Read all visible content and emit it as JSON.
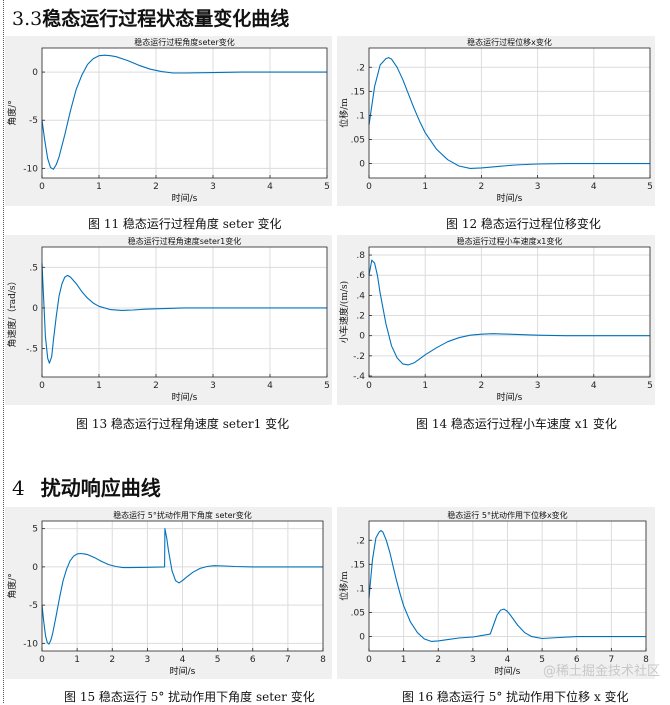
{
  "headings": {
    "section_3_3": {
      "num": "3.3",
      "text": "稳态运行过程状态量变化曲线"
    },
    "section_4": {
      "num": "4",
      "text": "扰动响应曲线"
    }
  },
  "captions": [
    "图 11 稳态运行过程角度 seter 变化",
    "图 12 稳态运行过程位移变化",
    "图 13 稳态运行过程角速度 seter1 变化",
    "图 14 稳态运行过程小车速度 x1 变化",
    "图 15 稳态运行 5° 扰动作用下角度 seter 变化",
    "图 16 稳态运行 5° 扰动作用下位移 x 变化"
  ],
  "watermark": "@稀土掘金技术社区",
  "chart_data": [
    {
      "type": "line",
      "title": "稳态运行过程角度seter变化",
      "xlabel": "时间/s",
      "ylabel": "角度/°",
      "xlim": [
        0,
        5
      ],
      "ylim": [
        -11,
        2.5
      ],
      "xticks": [
        0,
        1,
        2,
        3,
        4,
        5
      ],
      "yticks": [
        -10,
        -5,
        0
      ],
      "grid": true,
      "series": [
        {
          "x": [
            0,
            0.05,
            0.1,
            0.15,
            0.2,
            0.25,
            0.3,
            0.4,
            0.5,
            0.6,
            0.7,
            0.8,
            0.9,
            1.0,
            1.1,
            1.2,
            1.3,
            1.5,
            1.7,
            1.9,
            2.1,
            2.3,
            2.5,
            3.0,
            3.5,
            4.0,
            5.0
          ],
          "y": [
            -5,
            -7.2,
            -9.0,
            -9.9,
            -10.1,
            -9.6,
            -8.8,
            -6.5,
            -4.0,
            -1.8,
            -0.3,
            0.8,
            1.4,
            1.7,
            1.75,
            1.7,
            1.6,
            1.2,
            0.7,
            0.3,
            0.05,
            -0.1,
            -0.1,
            -0.05,
            0,
            0,
            0
          ]
        }
      ]
    },
    {
      "type": "line",
      "title": "稳态运行过程位移x变化",
      "xlabel": "时间/s",
      "ylabel": "位移/m",
      "xlim": [
        0,
        5
      ],
      "ylim": [
        -0.03,
        0.24
      ],
      "xticks": [
        0,
        1,
        2,
        3,
        4,
        5
      ],
      "yticks": [
        0,
        0.05,
        0.1,
        0.15,
        0.2
      ],
      "grid": true,
      "series": [
        {
          "x": [
            0,
            0.1,
            0.2,
            0.3,
            0.35,
            0.4,
            0.5,
            0.6,
            0.7,
            0.8,
            0.9,
            1.0,
            1.2,
            1.4,
            1.6,
            1.8,
            2.0,
            2.3,
            2.6,
            3.0,
            3.5,
            4.0,
            5.0
          ],
          "y": [
            0.08,
            0.16,
            0.205,
            0.218,
            0.22,
            0.217,
            0.2,
            0.175,
            0.145,
            0.115,
            0.088,
            0.064,
            0.03,
            0.008,
            -0.005,
            -0.01,
            -0.009,
            -0.006,
            -0.003,
            -0.001,
            0,
            0,
            0
          ]
        }
      ]
    },
    {
      "type": "line",
      "title": "稳态运行过程角速度seter1变化",
      "xlabel": "时间/s",
      "ylabel": "角速度/（rad/s）",
      "xlim": [
        0,
        5
      ],
      "ylim": [
        -0.85,
        0.75
      ],
      "xticks": [
        0,
        1,
        2,
        3,
        4,
        5
      ],
      "yticks": [
        -0.5,
        0,
        0.5
      ],
      "grid": true,
      "series": [
        {
          "x": [
            0,
            0.03,
            0.06,
            0.1,
            0.13,
            0.17,
            0.2,
            0.25,
            0.3,
            0.35,
            0.4,
            0.45,
            0.5,
            0.6,
            0.7,
            0.8,
            0.9,
            1.0,
            1.2,
            1.4,
            1.6,
            1.8,
            2.0,
            2.5,
            3.0,
            5.0
          ],
          "y": [
            0.55,
            0.1,
            -0.35,
            -0.62,
            -0.68,
            -0.6,
            -0.4,
            -0.1,
            0.15,
            0.3,
            0.38,
            0.4,
            0.38,
            0.3,
            0.2,
            0.12,
            0.06,
            0.02,
            -0.02,
            -0.03,
            -0.025,
            -0.015,
            -0.01,
            0,
            0,
            0
          ]
        }
      ]
    },
    {
      "type": "line",
      "title": "稳态运行过程小车速度x1变化",
      "xlabel": "时间/s",
      "ylabel": "小车速度/(m/s)",
      "xlim": [
        0,
        5
      ],
      "ylim": [
        -0.41,
        0.88
      ],
      "xticks": [
        0,
        1,
        2,
        3,
        4,
        5
      ],
      "yticks": [
        -0.4,
        -0.2,
        0,
        0.2,
        0.4,
        0.6,
        0.8
      ],
      "grid": true,
      "series": [
        {
          "x": [
            0,
            0.05,
            0.1,
            0.15,
            0.2,
            0.3,
            0.4,
            0.5,
            0.6,
            0.7,
            0.8,
            0.9,
            1.0,
            1.2,
            1.4,
            1.6,
            1.8,
            2.0,
            2.2,
            2.5,
            3.0,
            3.5,
            4.0,
            5.0
          ],
          "y": [
            0.6,
            0.75,
            0.72,
            0.6,
            0.42,
            0.12,
            -0.1,
            -0.22,
            -0.28,
            -0.29,
            -0.27,
            -0.23,
            -0.19,
            -0.12,
            -0.06,
            -0.02,
            0.005,
            0.015,
            0.02,
            0.015,
            0.005,
            0,
            0,
            0
          ]
        }
      ]
    },
    {
      "type": "line",
      "title": "稳态运行 5°扰动作用下角度 seter变化",
      "xlabel": "时间/s",
      "ylabel": "角度/°",
      "xlim": [
        0,
        8
      ],
      "ylim": [
        -11,
        6
      ],
      "xticks": [
        0,
        1,
        2,
        3,
        4,
        5,
        6,
        7,
        8
      ],
      "yticks": [
        -10,
        -5,
        0,
        5
      ],
      "grid": true,
      "series": [
        {
          "x": [
            0,
            0.05,
            0.1,
            0.15,
            0.2,
            0.25,
            0.3,
            0.4,
            0.5,
            0.6,
            0.7,
            0.8,
            0.9,
            1.0,
            1.1,
            1.2,
            1.3,
            1.5,
            1.7,
            1.9,
            2.1,
            2.3,
            2.5,
            3.0,
            3.49,
            3.5,
            3.55,
            3.6,
            3.7,
            3.8,
            3.9,
            4.0,
            4.1,
            4.3,
            4.5,
            4.7,
            4.9,
            5.2,
            5.5,
            6.0,
            6.5,
            8.0
          ],
          "y": [
            -5,
            -7.2,
            -9.0,
            -9.9,
            -10.1,
            -9.6,
            -8.8,
            -6.5,
            -4.0,
            -1.8,
            -0.3,
            0.8,
            1.4,
            1.7,
            1.75,
            1.7,
            1.6,
            1.2,
            0.7,
            0.3,
            0.05,
            -0.1,
            -0.1,
            -0.05,
            0,
            5,
            3.8,
            2.2,
            -0.5,
            -1.8,
            -2.1,
            -1.8,
            -1.4,
            -0.7,
            -0.2,
            0.05,
            0.15,
            0.12,
            0.05,
            0,
            0,
            0
          ]
        }
      ]
    },
    {
      "type": "line",
      "title": "稳态运行 5°扰动作用下位移x变化",
      "xlabel": "时间/s",
      "ylabel": "位移/m",
      "xlim": [
        0,
        8
      ],
      "ylim": [
        -0.03,
        0.24
      ],
      "xticks": [
        0,
        1,
        2,
        3,
        4,
        5,
        6,
        7,
        8
      ],
      "yticks": [
        0,
        0.05,
        0.1,
        0.15,
        0.2
      ],
      "grid": true,
      "series": [
        {
          "x": [
            0,
            0.1,
            0.2,
            0.3,
            0.35,
            0.4,
            0.5,
            0.6,
            0.7,
            0.8,
            0.9,
            1.0,
            1.2,
            1.4,
            1.6,
            1.8,
            2.0,
            2.3,
            2.6,
            3.0,
            3.5,
            3.6,
            3.7,
            3.8,
            3.9,
            4.0,
            4.1,
            4.3,
            4.5,
            4.7,
            5.0,
            5.5,
            6.0,
            8.0
          ],
          "y": [
            0.08,
            0.16,
            0.205,
            0.218,
            0.22,
            0.217,
            0.2,
            0.175,
            0.145,
            0.115,
            0.088,
            0.064,
            0.03,
            0.008,
            -0.005,
            -0.01,
            -0.009,
            -0.006,
            -0.003,
            -0.001,
            0.005,
            0.025,
            0.045,
            0.055,
            0.057,
            0.052,
            0.043,
            0.023,
            0.008,
            0,
            -0.004,
            -0.002,
            0,
            0
          ]
        }
      ]
    }
  ]
}
